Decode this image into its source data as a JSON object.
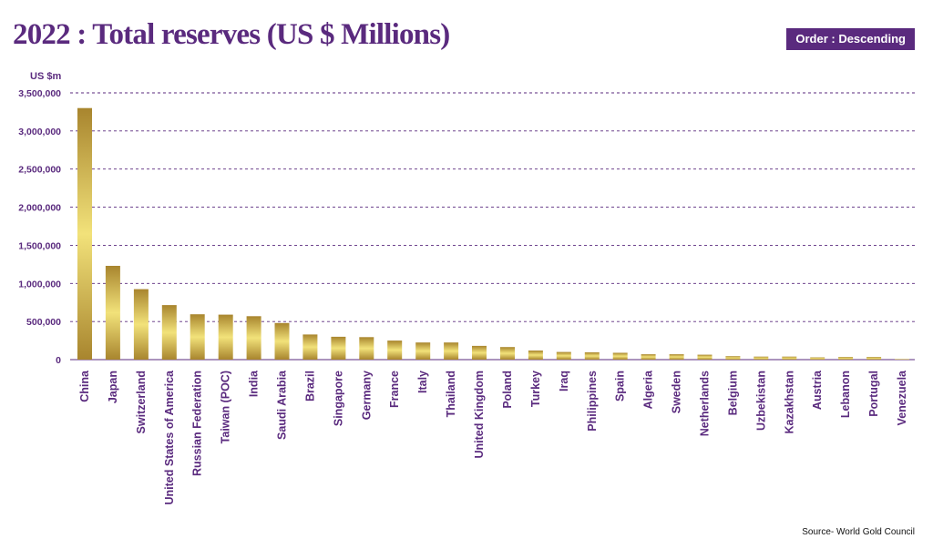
{
  "header": {
    "title": "2022 : Total reserves  (US $ Millions)",
    "order_badge": "Order : Descending"
  },
  "footer": {
    "source": "Source- World Gold Council"
  },
  "colors": {
    "accent": "#5a2a7e",
    "bar_light": "#f2e27a",
    "bar_dark": "#a8852e",
    "grid": "#5a2a7e"
  },
  "chart_data": {
    "type": "bar",
    "unit_label": "US $m",
    "grid": true,
    "ylim": [
      0,
      3500000
    ],
    "yticks": [
      0,
      500000,
      1000000,
      1500000,
      2000000,
      2500000,
      3000000,
      3500000
    ],
    "ytick_labels": [
      "0",
      "500,000",
      "1,000,000",
      "1,500,000",
      "2,000,000",
      "2,500,000",
      "3,000,000",
      "3,500,000"
    ],
    "categories": [
      "China",
      "Japan",
      "Switzerland",
      "United States of America",
      "Russian Federation",
      "Taiwan (POC)",
      "India",
      "Saudi Arabia",
      "Brazil",
      "Singapore",
      "Germany",
      "France",
      "Italy",
      "Thailand",
      "United Kingdom",
      "Poland",
      "Turkey",
      "Iraq",
      "Philippines",
      "Spain",
      "Algeria",
      "Sweden",
      "Netherlands",
      "Belgium",
      "Uzbekistan",
      "Kazakhstan",
      "Austria",
      "Lebanon",
      "Portugal",
      "Venezuela"
    ],
    "values": [
      3300000,
      1230000,
      925000,
      715000,
      595000,
      590000,
      570000,
      480000,
      330000,
      300000,
      295000,
      250000,
      225000,
      225000,
      180000,
      165000,
      120000,
      100000,
      95000,
      90000,
      70000,
      70000,
      65000,
      45000,
      40000,
      40000,
      30000,
      35000,
      35000,
      8000
    ]
  }
}
